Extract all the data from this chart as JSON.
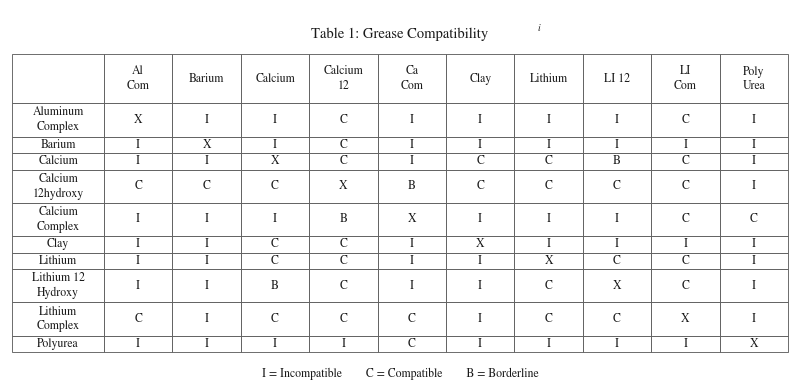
{
  "title": "Table 1: Grease Compatibility",
  "title_superscript": "i",
  "col_headers": [
    "Al\nCom",
    "Barium",
    "Calcium",
    "Calcium\n12",
    "Ca\nCom",
    "Clay",
    "Lithium",
    "LI 12",
    "LI\nCom",
    "Poly\nUrea"
  ],
  "row_headers": [
    "Aluminum\nComplex",
    "Barium",
    "Calcium",
    "Calcium\n12hydroxy",
    "Calcium\nComplex",
    "Clay",
    "Lithium",
    "Lithium 12\nHydroxy",
    "Lithium\nComplex",
    "Polyurea"
  ],
  "row_is_tall": [
    true,
    false,
    false,
    true,
    true,
    false,
    false,
    true,
    true,
    false
  ],
  "data": [
    [
      "X",
      "I",
      "I",
      "C",
      "I",
      "I",
      "I",
      "I",
      "C",
      "I"
    ],
    [
      "I",
      "X",
      "I",
      "C",
      "I",
      "I",
      "I",
      "I",
      "I",
      "I"
    ],
    [
      "I",
      "I",
      "X",
      "C",
      "I",
      "C",
      "C",
      "B",
      "C",
      "I"
    ],
    [
      "C",
      "C",
      "C",
      "X",
      "B",
      "C",
      "C",
      "C",
      "C",
      "I"
    ],
    [
      "I",
      "I",
      "I",
      "B",
      "X",
      "I",
      "I",
      "I",
      "C",
      "C"
    ],
    [
      "I",
      "I",
      "C",
      "C",
      "I",
      "X",
      "I",
      "I",
      "I",
      "I"
    ],
    [
      "I",
      "I",
      "C",
      "C",
      "I",
      "I",
      "X",
      "C",
      "C",
      "I"
    ],
    [
      "I",
      "I",
      "B",
      "C",
      "I",
      "I",
      "C",
      "X",
      "C",
      "I"
    ],
    [
      "C",
      "I",
      "C",
      "C",
      "C",
      "I",
      "C",
      "C",
      "X",
      "I"
    ],
    [
      "I",
      "I",
      "I",
      "I",
      "C",
      "I",
      "I",
      "I",
      "I",
      "X"
    ]
  ],
  "footer": "I = Incompatible        C = Compatible        B = Borderline",
  "bg_color": "#ffffff",
  "border_color": "#555555",
  "text_color": "#1a1a1a",
  "font_size_title": 10.5,
  "font_size_body": 8.5,
  "font_size_footer": 8.5
}
